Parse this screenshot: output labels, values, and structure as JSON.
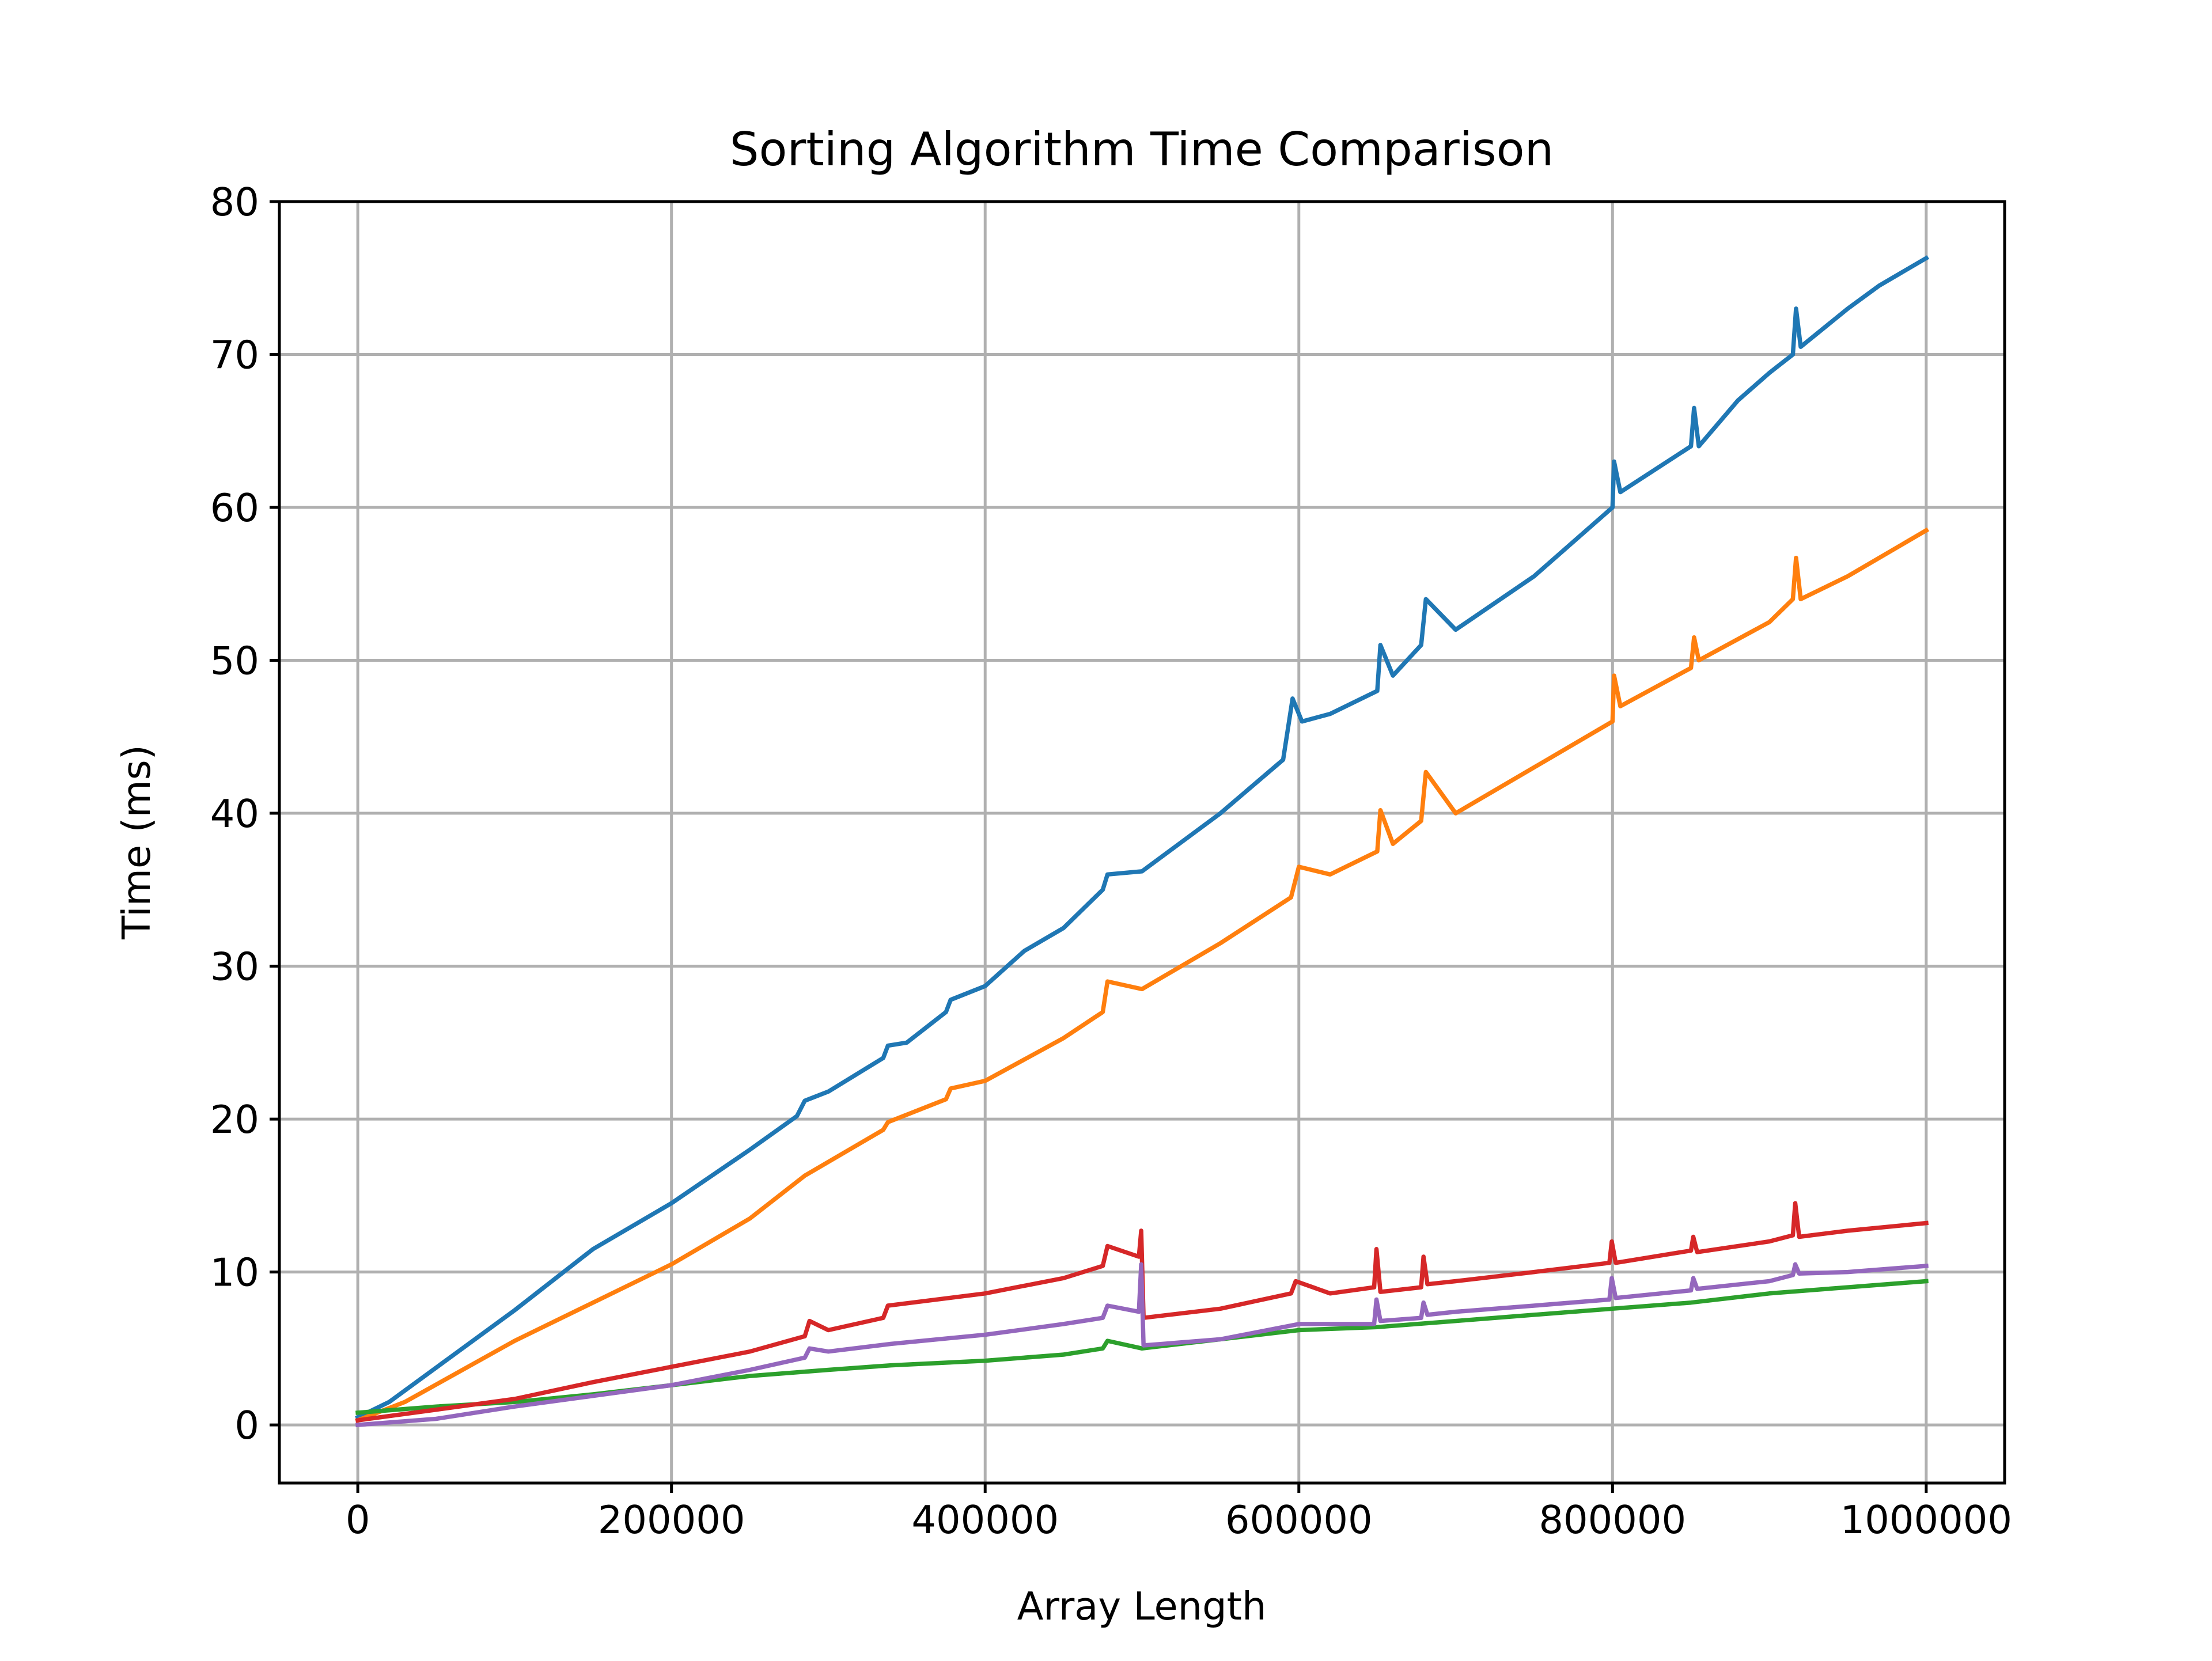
{
  "chart_data": {
    "type": "line",
    "title": "Sorting Algorithm Time Comparison",
    "xlabel": "Array Length",
    "ylabel": "Time (ms)",
    "xlim": [
      -50000,
      1050000
    ],
    "ylim": [
      -3.8,
      80
    ],
    "xticks": [
      0,
      200000,
      400000,
      600000,
      800000,
      1000000
    ],
    "xtick_labels": [
      "0",
      "200000",
      "400000",
      "600000",
      "800000",
      "1000000"
    ],
    "yticks": [
      0,
      10,
      20,
      30,
      40,
      50,
      60,
      70,
      80
    ],
    "ytick_labels": [
      "0",
      "10",
      "20",
      "30",
      "40",
      "50",
      "60",
      "70",
      "80"
    ],
    "grid": true,
    "legend": "none",
    "series": [
      {
        "color": "#1f77b4",
        "x": [
          0,
          20000,
          60000,
          100000,
          150000,
          200000,
          250000,
          280000,
          285000,
          300000,
          335000,
          338000,
          350000,
          375000,
          378000,
          400000,
          425000,
          450000,
          475000,
          478000,
          500000,
          550000,
          590000,
          596000,
          602000,
          620000,
          650000,
          652000,
          660000,
          678000,
          681000,
          700000,
          750000,
          800000,
          801000,
          805000,
          850000,
          852000,
          855000,
          880000,
          900000,
          915000,
          917000,
          920000,
          950000,
          970000,
          1000000
        ],
        "y": [
          0.5,
          1.5,
          4.5,
          7.5,
          11.5,
          14.5,
          18.0,
          20.2,
          21.2,
          21.8,
          24.0,
          24.8,
          25.0,
          27.0,
          27.8,
          28.7,
          31.0,
          32.5,
          35.0,
          36.0,
          36.2,
          40.0,
          43.5,
          47.5,
          46.0,
          46.5,
          48.0,
          51.0,
          49.0,
          51.0,
          54.0,
          52.0,
          55.5,
          60.0,
          63.0,
          61.0,
          64.0,
          66.5,
          64.0,
          67.0,
          68.8,
          70.0,
          73.0,
          70.5,
          73.0,
          74.5,
          76.3
        ]
      },
      {
        "color": "#ff7f0e",
        "x": [
          0,
          30000,
          100000,
          150000,
          200000,
          250000,
          285000,
          300000,
          335000,
          338000,
          375000,
          378000,
          400000,
          450000,
          475000,
          478000,
          500000,
          550000,
          595000,
          600000,
          620000,
          650000,
          652000,
          660000,
          678000,
          681000,
          700000,
          750000,
          800000,
          801000,
          805000,
          850000,
          852000,
          855000,
          900000,
          915000,
          917000,
          920000,
          950000,
          1000000
        ],
        "y": [
          0.3,
          1.5,
          5.5,
          8.0,
          10.5,
          13.5,
          16.3,
          17.2,
          19.3,
          19.8,
          21.3,
          22.0,
          22.5,
          25.3,
          27.0,
          29.0,
          28.5,
          31.5,
          34.5,
          36.5,
          36.0,
          37.5,
          40.2,
          38.0,
          39.5,
          42.7,
          40.0,
          43.0,
          46.0,
          49.0,
          47.0,
          49.5,
          51.5,
          50.0,
          52.5,
          54.0,
          56.7,
          54.0,
          55.5,
          58.5
        ]
      },
      {
        "color": "#2ca02c",
        "x": [
          0,
          50000,
          100000,
          150000,
          200000,
          250000,
          300000,
          340000,
          400000,
          450000,
          475000,
          478000,
          500000,
          550000,
          600000,
          650000,
          700000,
          750000,
          800000,
          850000,
          900000,
          950000,
          1000000
        ],
        "y": [
          0.8,
          1.2,
          1.5,
          2.0,
          2.6,
          3.2,
          3.6,
          3.9,
          4.2,
          4.6,
          5.0,
          5.5,
          5.0,
          5.6,
          6.2,
          6.4,
          6.8,
          7.2,
          7.6,
          8.0,
          8.6,
          9.0,
          9.4
        ]
      },
      {
        "color": "#d62728",
        "x": [
          0,
          50000,
          100000,
          150000,
          200000,
          250000,
          285000,
          288000,
          300000,
          335000,
          338000,
          400000,
          450000,
          475000,
          478000,
          498000,
          499500,
          501000,
          550000,
          595000,
          598000,
          620000,
          648000,
          649500,
          652000,
          678000,
          679500,
          682000,
          700000,
          750000,
          798000,
          799500,
          802000,
          850000,
          851500,
          854000,
          900000,
          915000,
          916500,
          919000,
          950000,
          1000000
        ],
        "y": [
          0.3,
          1.0,
          1.7,
          2.8,
          3.8,
          4.8,
          5.8,
          6.8,
          6.2,
          7.0,
          7.8,
          8.6,
          9.6,
          10.4,
          11.7,
          11.0,
          12.7,
          7.0,
          7.6,
          8.6,
          9.4,
          8.6,
          9.0,
          11.5,
          8.7,
          9.0,
          11.0,
          9.2,
          9.4,
          10.0,
          10.6,
          12.0,
          10.6,
          11.4,
          12.3,
          11.3,
          12.0,
          12.4,
          14.5,
          12.3,
          12.7,
          13.2
        ]
      },
      {
        "color": "#9467bd",
        "x": [
          0,
          50000,
          100000,
          150000,
          200000,
          250000,
          285000,
          288000,
          300000,
          340000,
          400000,
          450000,
          475000,
          478000,
          498000,
          499500,
          501000,
          550000,
          600000,
          648000,
          649500,
          652000,
          678000,
          679500,
          682000,
          700000,
          750000,
          798000,
          799500,
          802000,
          850000,
          851500,
          854000,
          900000,
          915000,
          916500,
          919000,
          950000,
          1000000
        ],
        "y": [
          0.0,
          0.4,
          1.2,
          1.9,
          2.6,
          3.6,
          4.4,
          5.0,
          4.8,
          5.3,
          5.9,
          6.6,
          7.0,
          7.8,
          7.4,
          10.5,
          5.2,
          5.6,
          6.6,
          6.6,
          8.2,
          6.8,
          7.0,
          8.0,
          7.2,
          7.4,
          7.8,
          8.2,
          9.6,
          8.3,
          8.8,
          9.6,
          8.9,
          9.4,
          9.8,
          10.5,
          9.9,
          10.0,
          10.4
        ]
      }
    ]
  }
}
